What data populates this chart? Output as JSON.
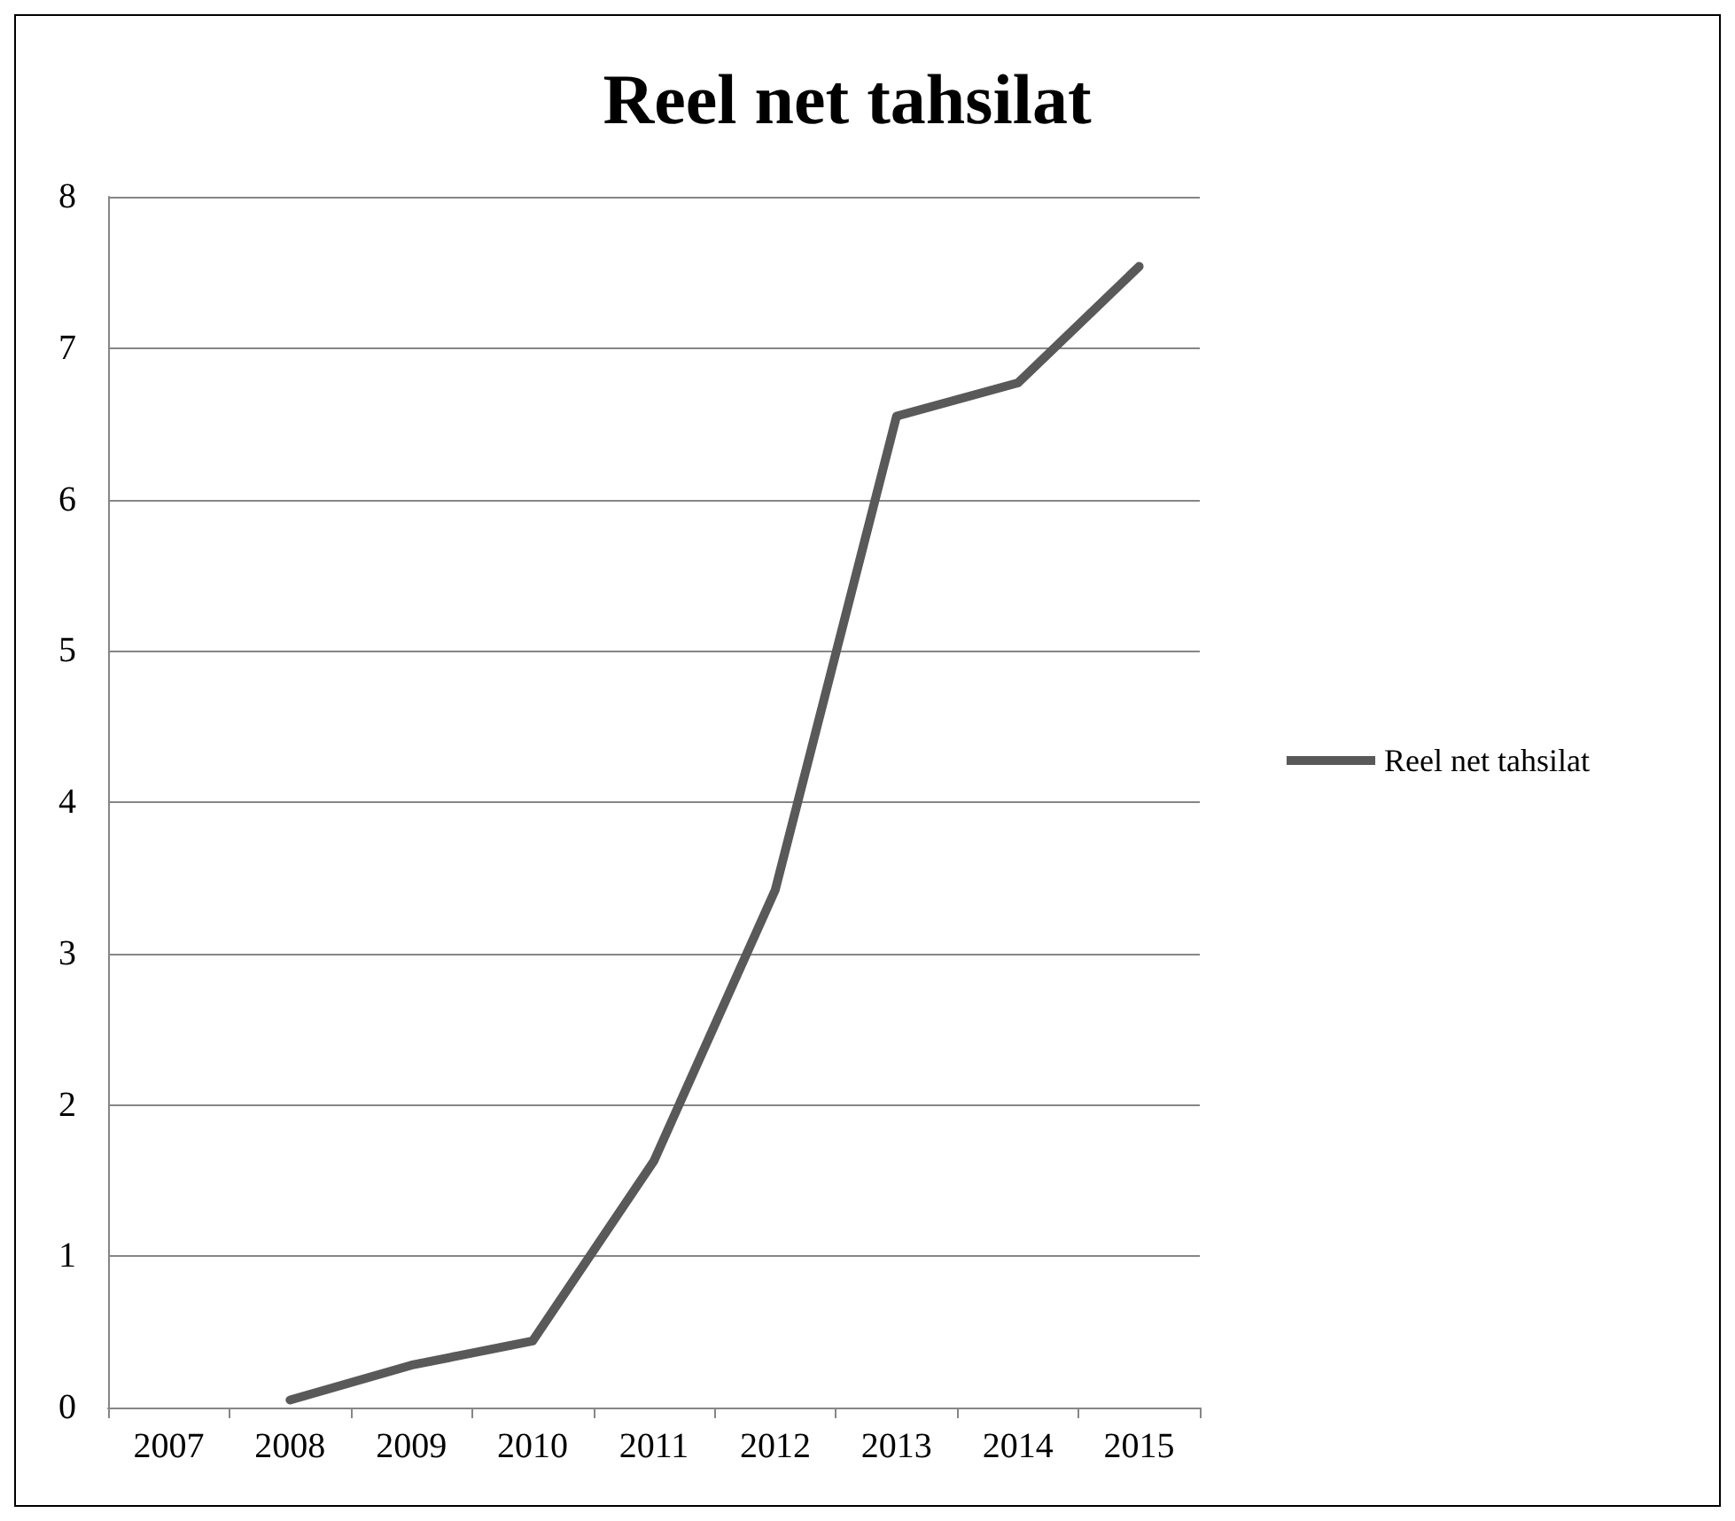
{
  "chart_data": {
    "type": "line",
    "title": "Reel net tahsilat",
    "categories": [
      "2007",
      "2008",
      "2009",
      "2010",
      "2011",
      "2012",
      "2013",
      "2014",
      "2015"
    ],
    "series": [
      {
        "name": "Reel net tahsilat",
        "color": "#595959",
        "values": [
          null,
          0.05,
          0.28,
          0.44,
          1.63,
          3.42,
          6.55,
          6.77,
          7.54
        ]
      }
    ],
    "ylim": [
      0,
      8
    ],
    "yticks": [
      0,
      1,
      2,
      3,
      4,
      5,
      6,
      7,
      8
    ],
    "grid": "y",
    "legend": "right",
    "marker": "none",
    "line_style": "solid"
  }
}
